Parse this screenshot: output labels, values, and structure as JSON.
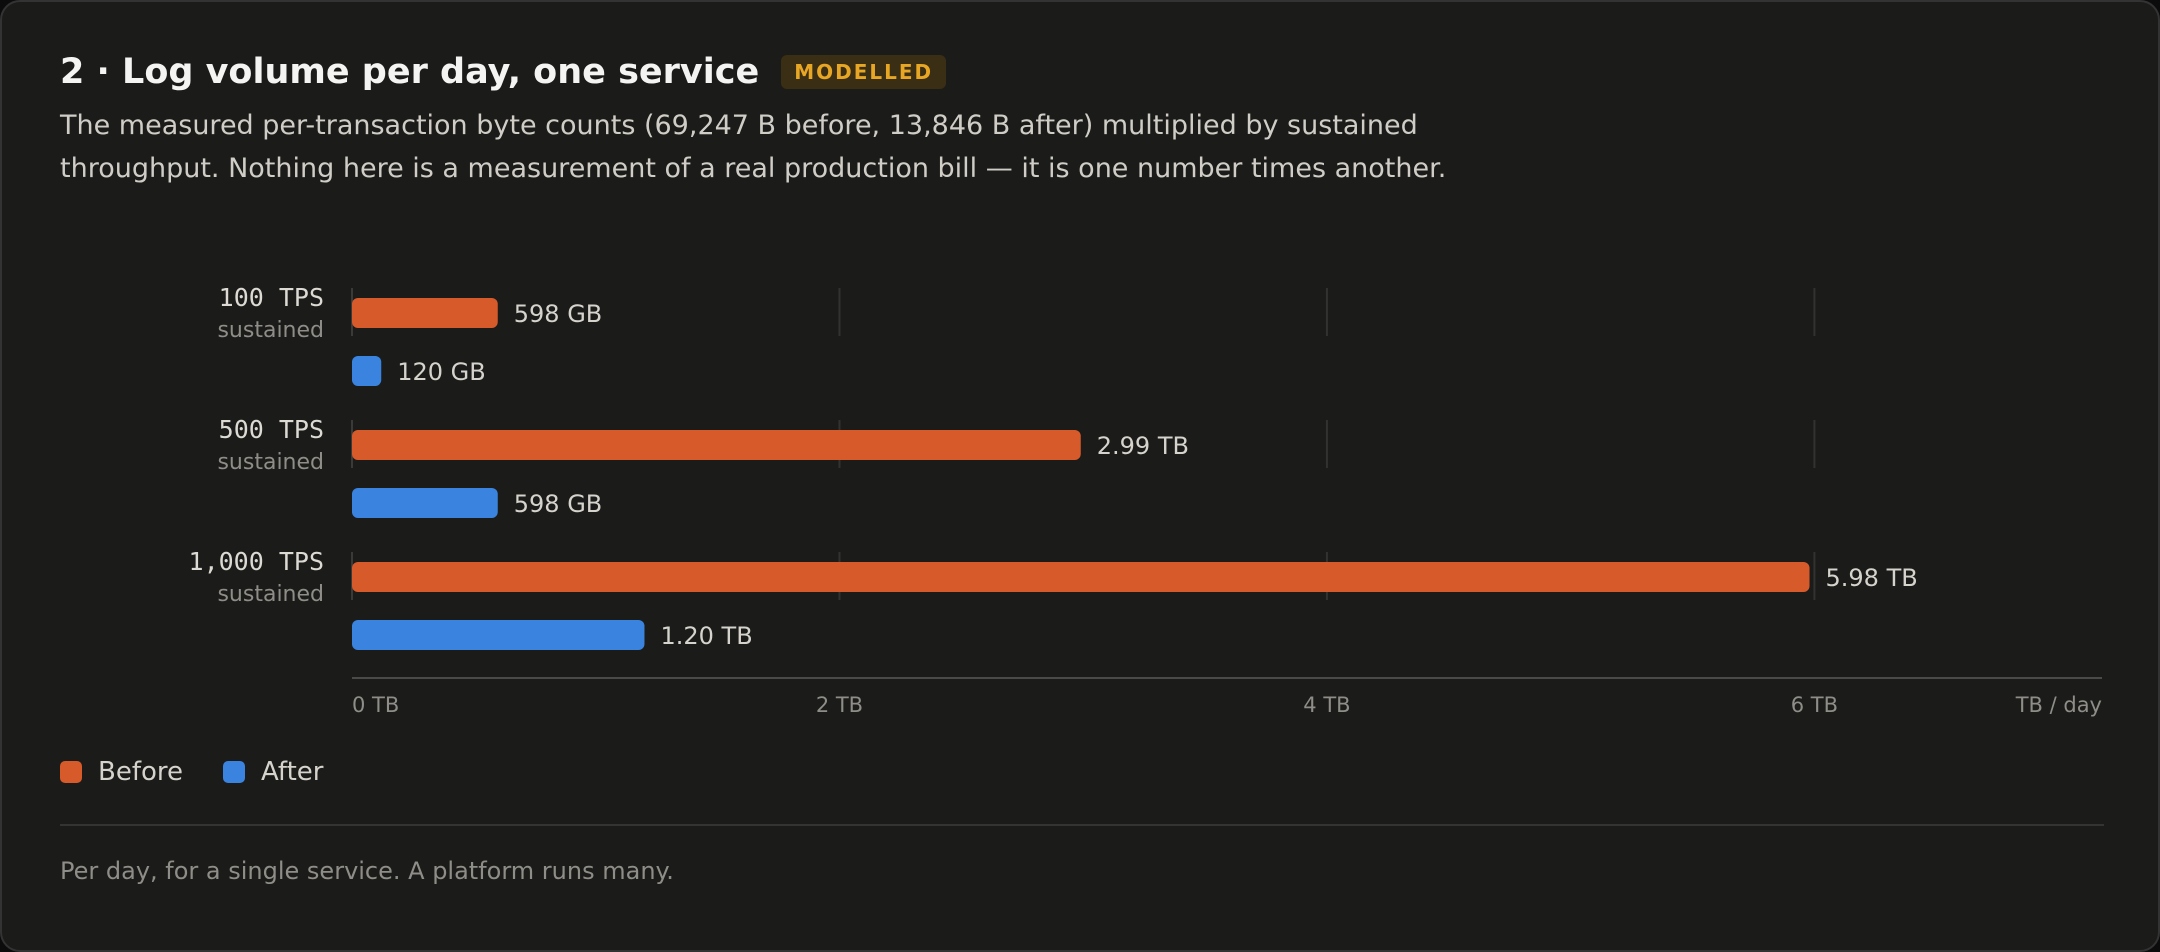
{
  "card": {
    "title": "2 · Log volume per day, one service",
    "badge": "MODELLED",
    "description": "The measured per-transaction byte counts (69,247 B before, 13,846 B after) multiplied by sustained throughput. Nothing here is a measurement of a real production bill — it is one number times another.",
    "footnote": "Per day, for a single service. A platform runs many."
  },
  "colors": {
    "before": "#d75a2b",
    "after": "#3a84e0"
  },
  "chart_data": {
    "type": "bar",
    "orientation": "horizontal",
    "categories": [
      {
        "name": "100 TPS",
        "sub": "sustained"
      },
      {
        "name": "500 TPS",
        "sub": "sustained"
      },
      {
        "name": "1,000 TPS",
        "sub": "sustained"
      }
    ],
    "series": [
      {
        "name": "Before",
        "color": "#d75a2b",
        "values": [
          0.598,
          2.99,
          5.98
        ],
        "labels": [
          "598 GB",
          "2.99 TB",
          "5.98 TB"
        ]
      },
      {
        "name": "After",
        "color": "#3a84e0",
        "values": [
          0.12,
          0.598,
          1.2
        ],
        "labels": [
          "120 GB",
          "598 GB",
          "1.20 TB"
        ]
      }
    ],
    "xlim": [
      0,
      7.18
    ],
    "ticks": [
      {
        "value": 0,
        "label": "0 TB"
      },
      {
        "value": 2,
        "label": "2 TB"
      },
      {
        "value": 4,
        "label": "4 TB"
      },
      {
        "value": 6,
        "label": "6 TB"
      }
    ],
    "xlabel": "TB / day",
    "grid": true,
    "legend": "bottom-left"
  }
}
